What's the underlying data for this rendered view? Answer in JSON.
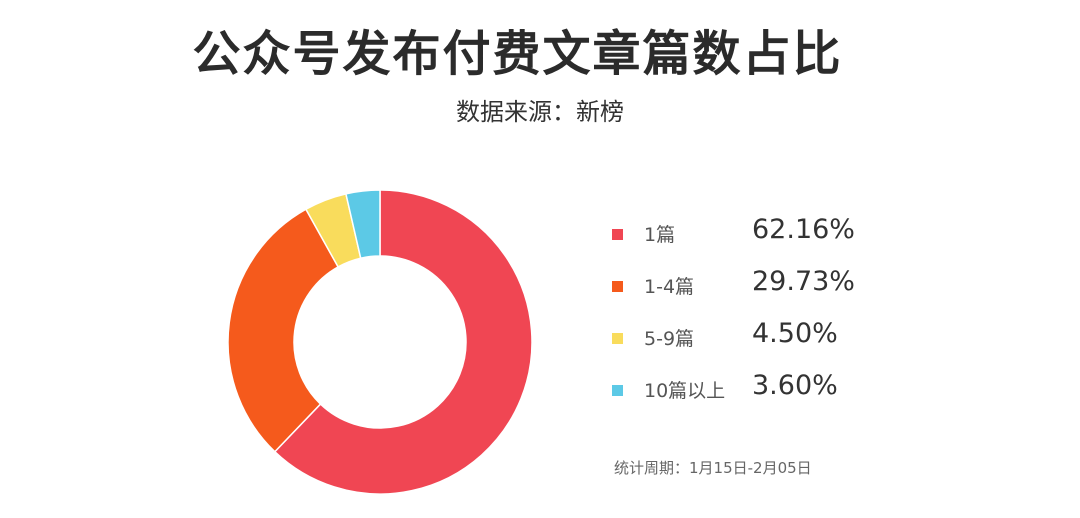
{
  "chart_data": {
    "type": "pie",
    "title": "公众号发布付费文章篇数占比",
    "subtitle": "数据来源：新榜",
    "footnote": "统计周期：1月15日-2月05日",
    "legend_position": "right",
    "donut": true,
    "slices": [
      {
        "label": "1篇",
        "value": 62.16,
        "value_text": "62.16%",
        "color": "#f04653"
      },
      {
        "label": "1-4篇",
        "value": 29.73,
        "value_text": "29.73%",
        "color": "#f55a1c"
      },
      {
        "label": "5-9篇",
        "value": 4.5,
        "value_text": "4.50%",
        "color": "#f9dc5c"
      },
      {
        "label": "10篇以上",
        "value": 3.6,
        "value_text": "3.60%",
        "color": "#5cc9e6"
      }
    ]
  }
}
